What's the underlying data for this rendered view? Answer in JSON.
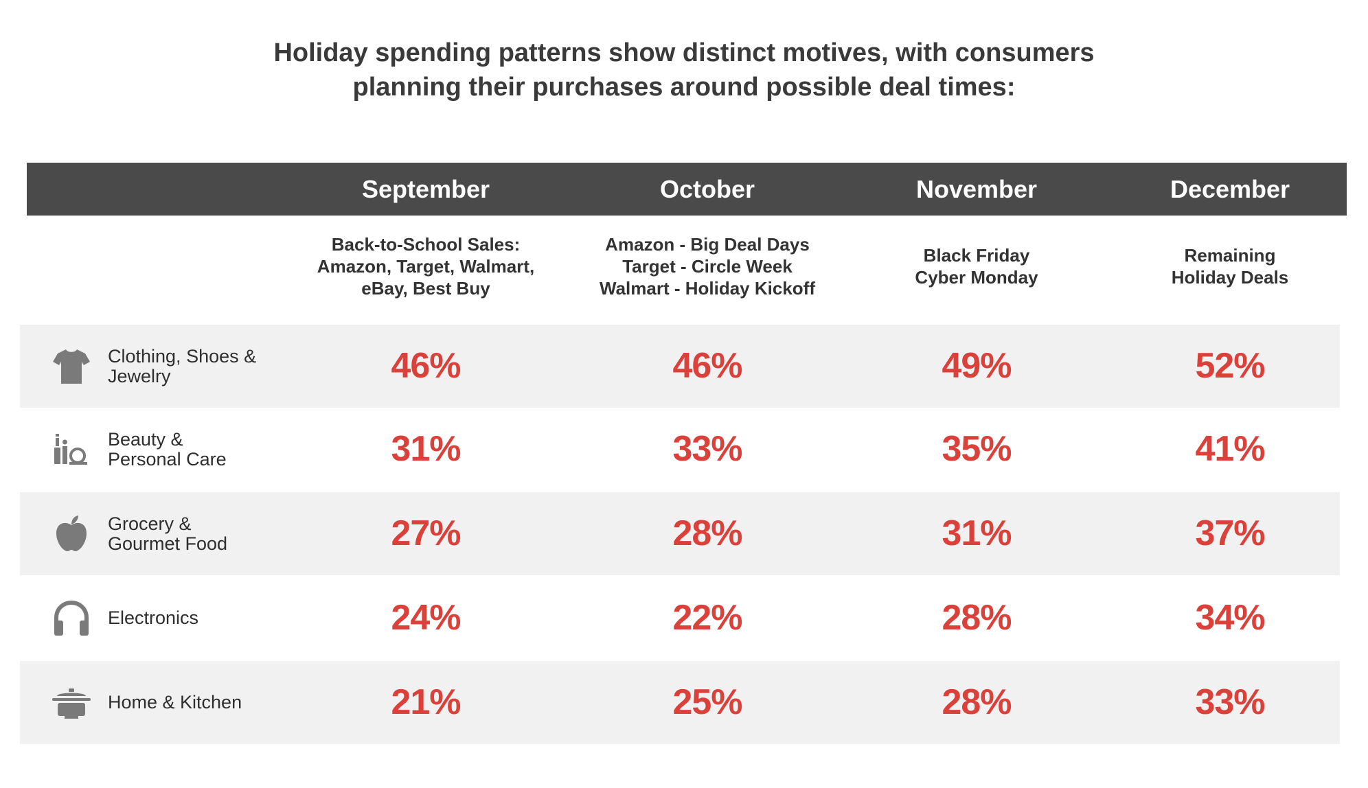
{
  "title": {
    "line1": "Holiday spending patterns show distinct motives, with consumers",
    "line2": "planning their purchases around possible deal times:"
  },
  "colors": {
    "header_bg": "#4a4a4a",
    "value_red": "#d9413a",
    "row_shade": "#f1f1f1",
    "icon_gray": "#7a7a7a"
  },
  "chart_data": {
    "type": "table",
    "title": "Holiday spending patterns show distinct motives, with consumers planning their purchases around possible deal times:",
    "columns": [
      {
        "month": "September",
        "events": [
          "Back-to-School Sales:",
          "Amazon, Target, Walmart,",
          "eBay, Best Buy"
        ]
      },
      {
        "month": "October",
        "events": [
          "Amazon - Big Deal Days",
          "Target - Circle Week",
          "Walmart - Holiday Kickoff"
        ]
      },
      {
        "month": "November",
        "events": [
          "Black Friday",
          "Cyber Monday"
        ]
      },
      {
        "month": "December",
        "events": [
          "Remaining",
          "Holiday Deals"
        ]
      }
    ],
    "rows": [
      {
        "icon": "t-shirt-icon",
        "label_lines": [
          "Clothing, Shoes &",
          "Jewelry"
        ],
        "values": [
          "46%",
          "46%",
          "49%",
          "52%"
        ]
      },
      {
        "icon": "beauty-products-icon",
        "label_lines": [
          "Beauty &",
          "Personal Care"
        ],
        "values": [
          "31%",
          "33%",
          "35%",
          "41%"
        ]
      },
      {
        "icon": "apple-icon",
        "label_lines": [
          "Grocery &",
          "Gourmet Food"
        ],
        "values": [
          "27%",
          "28%",
          "31%",
          "37%"
        ]
      },
      {
        "icon": "headphones-icon",
        "label_lines": [
          "Electronics"
        ],
        "values": [
          "24%",
          "22%",
          "28%",
          "34%"
        ]
      },
      {
        "icon": "cooking-pot-icon",
        "label_lines": [
          "Home & Kitchen"
        ],
        "values": [
          "21%",
          "25%",
          "28%",
          "33%"
        ]
      }
    ]
  }
}
